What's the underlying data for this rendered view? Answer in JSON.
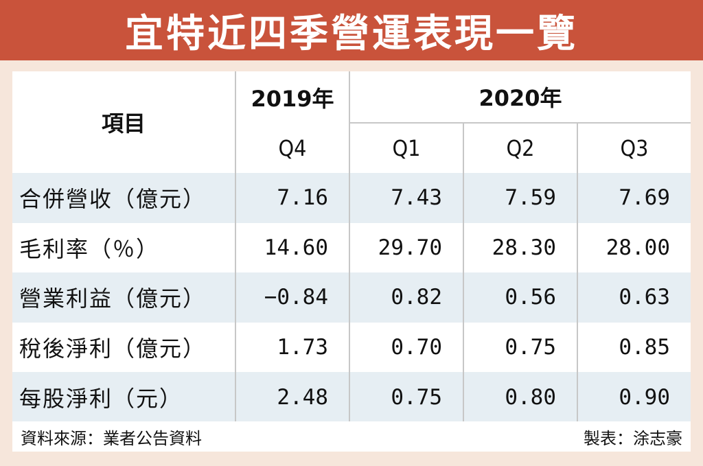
{
  "title": "宜特近四季營運表現一覽",
  "chart_data": {
    "type": "table",
    "header": {
      "item": "項目",
      "year_2019": "2019年",
      "year_2020": "2020年",
      "quarters": [
        "Q4",
        "Q1",
        "Q2",
        "Q3"
      ]
    },
    "rows": [
      {
        "label": "合併營收（億元）",
        "values": [
          "7.16",
          "7.43",
          "7.59",
          "7.69"
        ]
      },
      {
        "label": "毛利率（％）",
        "values": [
          "14.60",
          "29.70",
          "28.30",
          "28.00"
        ]
      },
      {
        "label": "營業利益（億元）",
        "values": [
          "−0.84",
          "0.82",
          "0.56",
          "0.63"
        ]
      },
      {
        "label": "稅後淨利（億元）",
        "values": [
          "1.73",
          "0.70",
          "0.75",
          "0.85"
        ]
      },
      {
        "label": "每股淨利（元）",
        "values": [
          "2.48",
          "0.75",
          "0.80",
          "0.90"
        ]
      }
    ]
  },
  "footer": {
    "source": "資料來源：業者公告資料",
    "credit": "製表：涂志豪"
  },
  "colors": {
    "banner": "#c9533b",
    "background": "#f6e6db",
    "row_shade": "#e6eef3"
  }
}
